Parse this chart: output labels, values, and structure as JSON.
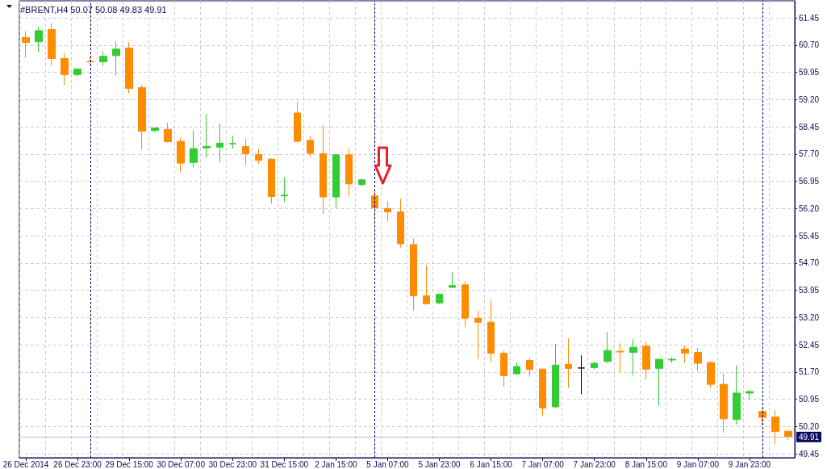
{
  "chart_data": {
    "type": "candlestick",
    "title": "#BRENT,H4 50.07 50.08 49.83 49.91",
    "categories": [
      "26 Dec 2014",
      null,
      null,
      null,
      "26 Dec 23:00",
      null,
      null,
      null,
      "29 Dec 15:00",
      null,
      null,
      null,
      "30 Dec 07:00",
      null,
      null,
      null,
      "30 Dec 23:00",
      null,
      null,
      null,
      "31 Dec 15:00",
      null,
      null,
      null,
      "2 Jan 15:00",
      null,
      null,
      null,
      "5 Jan 07:00",
      null,
      null,
      null,
      "5 Jan 23:00",
      null,
      null,
      null,
      "6 Jan 15:00",
      null,
      null,
      null,
      "7 Jan 07:00",
      null,
      null,
      null,
      "7 Jan 23:00",
      null,
      null,
      null,
      "8 Jan 15:00",
      null,
      null,
      null,
      "9 Jan 07:00",
      null,
      null,
      null,
      "9 Jan 23:00",
      null,
      null,
      null
    ],
    "ohlc": [
      [
        60.91,
        61.08,
        60.36,
        60.77
      ],
      [
        60.79,
        61.21,
        60.51,
        61.1
      ],
      [
        61.13,
        61.31,
        60.14,
        60.33
      ],
      [
        60.33,
        60.47,
        59.6,
        59.89
      ],
      [
        59.89,
        60.05,
        59.83,
        60.04
      ],
      [
        60.25,
        60.38,
        60.16,
        60.24
      ],
      [
        60.24,
        60.53,
        60.14,
        60.39
      ],
      [
        60.41,
        60.8,
        59.86,
        60.59
      ],
      [
        60.62,
        60.78,
        59.38,
        59.51
      ],
      [
        59.53,
        59.6,
        57.82,
        58.33
      ],
      [
        58.35,
        58.43,
        58.31,
        58.42
      ],
      [
        58.38,
        58.56,
        58.02,
        58.04
      ],
      [
        58.05,
        58.14,
        57.2,
        57.45
      ],
      [
        57.47,
        58.36,
        57.33,
        57.85
      ],
      [
        57.87,
        58.8,
        57.6,
        57.91
      ],
      [
        57.89,
        58.54,
        57.48,
        58.0
      ],
      [
        57.98,
        58.21,
        57.85,
        57.99
      ],
      [
        57.91,
        58.12,
        57.4,
        57.71
      ],
      [
        57.69,
        57.85,
        57.43,
        57.53
      ],
      [
        57.56,
        57.58,
        56.34,
        56.53
      ],
      [
        56.55,
        57.06,
        56.38,
        56.57
      ],
      [
        58.83,
        59.14,
        58.04,
        58.05
      ],
      [
        58.08,
        58.21,
        57.63,
        57.72
      ],
      [
        57.71,
        58.5,
        56.05,
        56.52
      ],
      [
        56.52,
        57.69,
        56.21,
        57.68
      ],
      [
        57.68,
        57.86,
        56.52,
        56.88
      ],
      [
        56.86,
        57.02,
        56.83,
        56.99
      ],
      [
        56.55,
        56.74,
        55.95,
        56.22
      ],
      [
        56.2,
        56.4,
        55.86,
        56.11
      ],
      [
        56.11,
        56.47,
        55.13,
        55.23
      ],
      [
        55.21,
        55.37,
        53.39,
        53.8
      ],
      [
        53.8,
        54.64,
        53.57,
        53.58
      ],
      [
        53.6,
        53.86,
        53.57,
        53.84
      ],
      [
        54.03,
        54.44,
        54.01,
        54.08
      ],
      [
        54.1,
        54.2,
        52.93,
        53.18
      ],
      [
        53.18,
        53.39,
        52.07,
        53.07
      ],
      [
        53.07,
        53.68,
        51.98,
        52.22
      ],
      [
        52.22,
        52.3,
        51.3,
        51.6
      ],
      [
        51.65,
        51.96,
        51.62,
        51.85
      ],
      [
        52.02,
        52.1,
        51.57,
        51.77
      ],
      [
        51.78,
        51.79,
        50.49,
        50.71
      ],
      [
        50.74,
        52.47,
        50.71,
        51.89
      ],
      [
        51.91,
        52.63,
        51.27,
        51.8
      ],
      [
        51.81,
        52.16,
        51.09,
        51.81
      ],
      [
        51.82,
        51.98,
        51.76,
        51.94
      ],
      [
        51.99,
        52.8,
        51.95,
        52.29
      ],
      [
        52.27,
        52.49,
        51.69,
        52.25
      ],
      [
        52.24,
        52.6,
        51.6,
        52.38
      ],
      [
        52.41,
        52.54,
        51.49,
        51.78
      ],
      [
        51.8,
        52.06,
        50.78,
        52.05
      ],
      [
        52.03,
        52.11,
        51.95,
        52.05
      ],
      [
        52.33,
        52.43,
        51.95,
        52.22
      ],
      [
        52.24,
        52.36,
        51.74,
        51.94
      ],
      [
        51.96,
        51.99,
        51.27,
        51.36
      ],
      [
        51.36,
        51.66,
        50.03,
        50.41
      ],
      [
        50.39,
        51.88,
        50.25,
        51.12
      ],
      [
        51.12,
        51.21,
        50.94,
        51.16
      ],
      [
        50.61,
        50.71,
        50.24,
        50.45
      ],
      [
        50.46,
        50.64,
        49.71,
        50.06
      ],
      [
        50.07,
        50.08,
        49.83,
        49.91
      ]
    ],
    "colors": [
      "#ff8c00",
      "#32cd32",
      "#ff8c00",
      "#ff8c00",
      "#32cd32",
      "#ff8c00",
      "#32cd32",
      "#32cd32",
      "#ff8c00",
      "#ff8c00",
      "#32cd32",
      "#ff8c00",
      "#ff8c00",
      "#32cd32",
      "#32cd32",
      "#32cd32",
      "#32cd32",
      "#ff8c00",
      "#ff8c00",
      "#ff8c00",
      "#32cd32",
      "#ff8c00",
      "#ff8c00",
      "#ff8c00",
      "#32cd32",
      "#ff8c00",
      "#32cd32",
      "#ff8c00",
      "#ff8c00",
      "#ff8c00",
      "#ff8c00",
      "#ff8c00",
      "#32cd32",
      "#32cd32",
      "#ff8c00",
      "#ff8c00",
      "#ff8c00",
      "#ff8c00",
      "#32cd32",
      "#ff8c00",
      "#ff8c00",
      "#32cd32",
      "#ff8c00",
      "#000000",
      "#32cd32",
      "#32cd32",
      "#ff8c00",
      "#32cd32",
      "#ff8c00",
      "#32cd32",
      "#32cd32",
      "#ff8c00",
      "#ff8c00",
      "#ff8c00",
      "#ff8c00",
      "#32cd32",
      "#32cd32",
      "#ff8c00",
      "#ff8c00",
      "#ff8c00"
    ],
    "ylim": [
      49.34,
      61.92
    ],
    "yticks": [
      49.45,
      {
        "value": 50.2,
        "label": "50.20"
      },
      50.95,
      {
        "value": 51.7,
        "label": "51.70"
      },
      52.45,
      {
        "value": 53.2,
        "label": "53.20"
      },
      53.95,
      {
        "value": 54.7,
        "label": "54.70"
      },
      55.45,
      {
        "value": 56.2,
        "label": "56.20"
      },
      56.95,
      {
        "value": 57.7,
        "label": "57.70"
      },
      58.45,
      {
        "value": 59.2,
        "label": "59.20"
      },
      59.95,
      {
        "value": 60.7,
        "label": "60.70"
      },
      61.45
    ],
    "grid": true,
    "ref_lines": [
      {
        "axis": "y",
        "value": 49.91,
        "label": "49.91",
        "color": "#c0c0c0",
        "line_style": "solid"
      }
    ]
  }
}
